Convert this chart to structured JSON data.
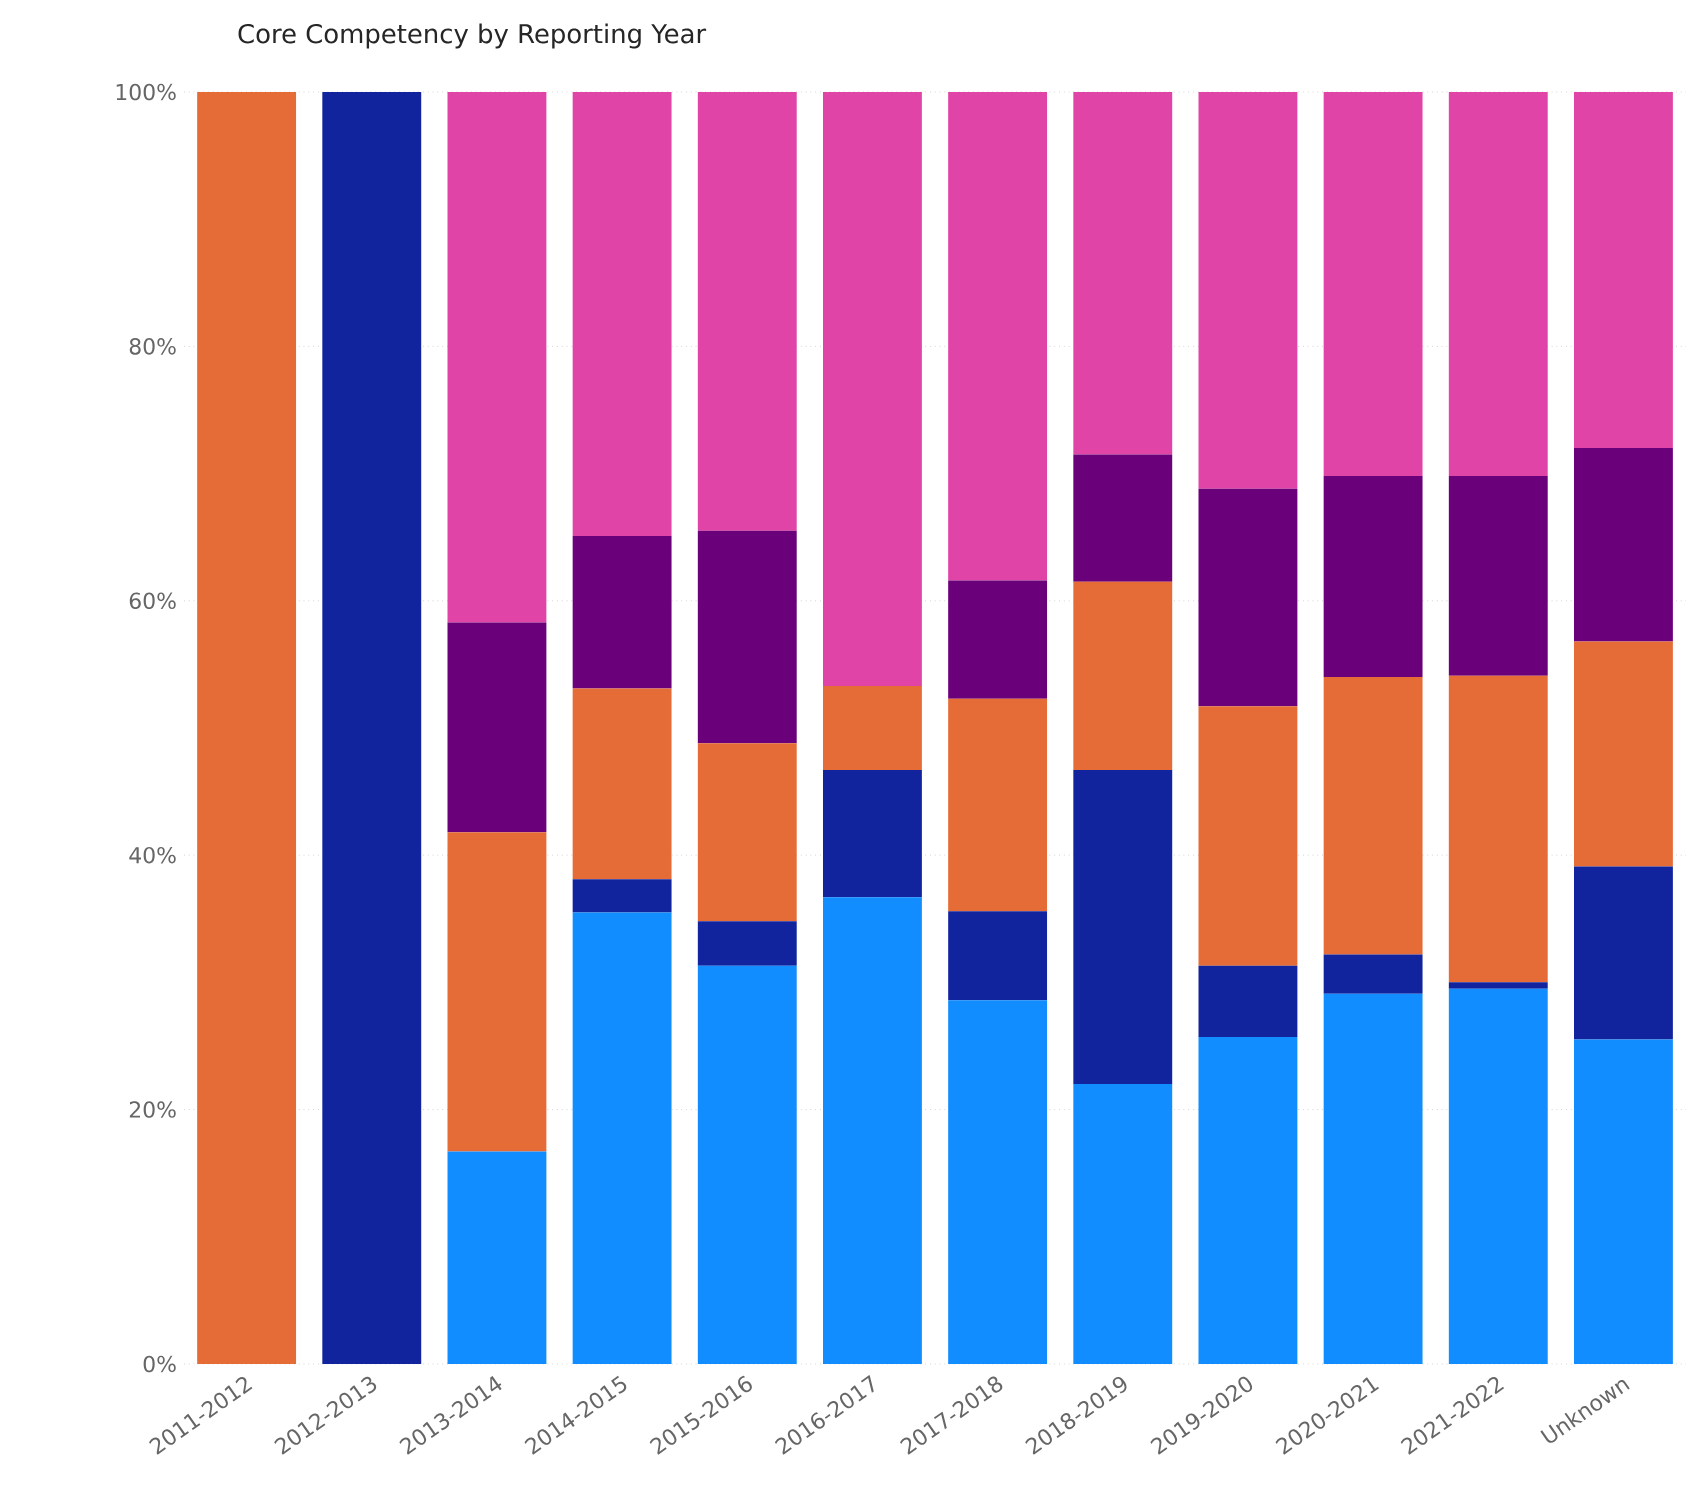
{
  "chart_data": {
    "type": "bar",
    "title": "Core Competency by Reporting Year",
    "stacked": true,
    "categories": [
      "2011-2012",
      "2012-2013",
      "2013-2014",
      "2014-2015",
      "2015-2016",
      "2016-2017",
      "2017-2018",
      "2018-2019",
      "2019-2020",
      "2020-2021",
      "2021-2022",
      "Unknown"
    ],
    "series": [
      {
        "color": "#118dff",
        "values": [
          0,
          0,
          16.7,
          35.5,
          31.3,
          36.7,
          28.6,
          22.0,
          25.7,
          29.1,
          29.5,
          25.5
        ]
      },
      {
        "color": "#12239e",
        "values": [
          0,
          100,
          0,
          2.6,
          3.5,
          10.0,
          7.0,
          24.7,
          5.6,
          3.1,
          0.5,
          13.6
        ]
      },
      {
        "color": "#e66c37",
        "values": [
          100,
          0,
          25.1,
          15.0,
          14.0,
          6.6,
          16.7,
          14.8,
          20.4,
          21.8,
          24.1,
          17.7
        ]
      },
      {
        "color": "#6b007b",
        "values": [
          0,
          0,
          16.5,
          12.0,
          16.7,
          0,
          9.3,
          10.0,
          17.1,
          15.8,
          15.7,
          15.2
        ]
      },
      {
        "color": "#e044a7",
        "values": [
          0,
          0,
          41.7,
          34.9,
          34.5,
          46.7,
          38.4,
          28.5,
          31.2,
          30.2,
          30.2,
          28.0
        ]
      }
    ],
    "ylim": [
      0,
      100
    ],
    "yticks": [
      {
        "value": 0,
        "label": "0%"
      },
      {
        "value": 20,
        "label": "20%"
      },
      {
        "value": 40,
        "label": "40%"
      },
      {
        "value": 60,
        "label": "60%"
      },
      {
        "value": 80,
        "label": "80%"
      },
      {
        "value": 100,
        "label": "100%"
      }
    ],
    "grid": "y"
  }
}
